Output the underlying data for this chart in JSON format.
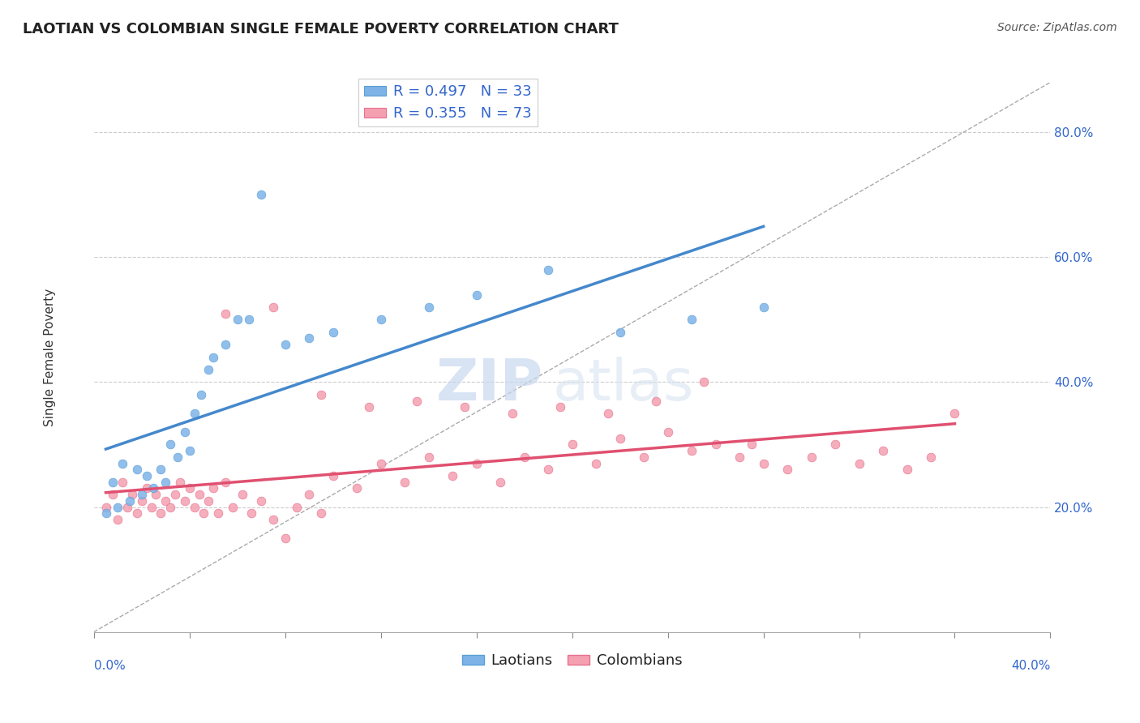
{
  "title": "LAOTIAN VS COLOMBIAN SINGLE FEMALE POVERTY CORRELATION CHART",
  "source": "Source: ZipAtlas.com",
  "ylabel": "Single Female Poverty",
  "right_yticks": [
    "20.0%",
    "40.0%",
    "60.0%",
    "80.0%"
  ],
  "right_ytick_vals": [
    0.2,
    0.4,
    0.6,
    0.8
  ],
  "xlim": [
    0.0,
    0.4
  ],
  "ylim": [
    0.0,
    0.88
  ],
  "laotian_color": "#7eb3e8",
  "colombian_color": "#f4a0b0",
  "laotian_edge": "#5a9fd4",
  "colombian_edge": "#e87090",
  "trend_laotian": "#4488cc",
  "trend_colombian": "#e05070",
  "R_laotian": 0.497,
  "N_laotian": 33,
  "R_colombian": 0.355,
  "N_colombian": 73,
  "laotian_x": [
    0.005,
    0.008,
    0.01,
    0.012,
    0.015,
    0.018,
    0.02,
    0.022,
    0.025,
    0.028,
    0.03,
    0.032,
    0.035,
    0.038,
    0.04,
    0.042,
    0.045,
    0.048,
    0.05,
    0.055,
    0.06,
    0.065,
    0.07,
    0.08,
    0.09,
    0.1,
    0.12,
    0.14,
    0.16,
    0.19,
    0.22,
    0.25,
    0.28
  ],
  "laotian_y": [
    0.19,
    0.24,
    0.2,
    0.27,
    0.21,
    0.26,
    0.22,
    0.25,
    0.23,
    0.26,
    0.24,
    0.3,
    0.28,
    0.32,
    0.29,
    0.35,
    0.38,
    0.42,
    0.44,
    0.46,
    0.5,
    0.5,
    0.7,
    0.46,
    0.47,
    0.48,
    0.5,
    0.52,
    0.54,
    0.58,
    0.48,
    0.5,
    0.52
  ],
  "colombian_x": [
    0.005,
    0.008,
    0.01,
    0.012,
    0.014,
    0.016,
    0.018,
    0.02,
    0.022,
    0.024,
    0.026,
    0.028,
    0.03,
    0.032,
    0.034,
    0.036,
    0.038,
    0.04,
    0.042,
    0.044,
    0.046,
    0.048,
    0.05,
    0.052,
    0.055,
    0.058,
    0.062,
    0.066,
    0.07,
    0.075,
    0.08,
    0.085,
    0.09,
    0.095,
    0.1,
    0.11,
    0.12,
    0.13,
    0.14,
    0.15,
    0.16,
    0.17,
    0.18,
    0.19,
    0.2,
    0.21,
    0.22,
    0.23,
    0.24,
    0.25,
    0.26,
    0.27,
    0.28,
    0.29,
    0.3,
    0.31,
    0.32,
    0.33,
    0.34,
    0.35,
    0.36,
    0.055,
    0.075,
    0.095,
    0.115,
    0.135,
    0.155,
    0.175,
    0.195,
    0.215,
    0.235,
    0.255,
    0.275
  ],
  "colombian_y": [
    0.2,
    0.22,
    0.18,
    0.24,
    0.2,
    0.22,
    0.19,
    0.21,
    0.23,
    0.2,
    0.22,
    0.19,
    0.21,
    0.2,
    0.22,
    0.24,
    0.21,
    0.23,
    0.2,
    0.22,
    0.19,
    0.21,
    0.23,
    0.19,
    0.24,
    0.2,
    0.22,
    0.19,
    0.21,
    0.18,
    0.15,
    0.2,
    0.22,
    0.19,
    0.25,
    0.23,
    0.27,
    0.24,
    0.28,
    0.25,
    0.27,
    0.24,
    0.28,
    0.26,
    0.3,
    0.27,
    0.31,
    0.28,
    0.32,
    0.29,
    0.3,
    0.28,
    0.27,
    0.26,
    0.28,
    0.3,
    0.27,
    0.29,
    0.26,
    0.28,
    0.35,
    0.51,
    0.52,
    0.38,
    0.36,
    0.37,
    0.36,
    0.35,
    0.36,
    0.35,
    0.37,
    0.4,
    0.3
  ],
  "watermark_zip": "ZIP",
  "watermark_atlas": "atlas",
  "background_color": "#ffffff",
  "grid_color": "#cccccc",
  "title_fontsize": 13,
  "axis_label_fontsize": 11,
  "tick_fontsize": 11,
  "legend_fontsize": 13,
  "source_fontsize": 10
}
